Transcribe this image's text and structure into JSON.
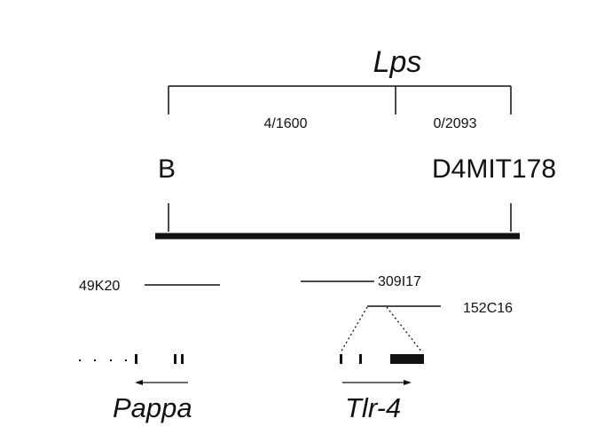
{
  "locus": {
    "name": "Lps"
  },
  "recombinants": {
    "left": "4/1600",
    "right": "0/2093"
  },
  "markers": {
    "left": "B",
    "right": "D4MIT178"
  },
  "clones": [
    {
      "id": "49K20"
    },
    {
      "id": "309I17"
    },
    {
      "id": "152C16"
    }
  ],
  "genes": {
    "left": "Pappa",
    "right": "Tlr-4"
  },
  "colors": {
    "ink": "#111111",
    "background": "#ffffff"
  }
}
